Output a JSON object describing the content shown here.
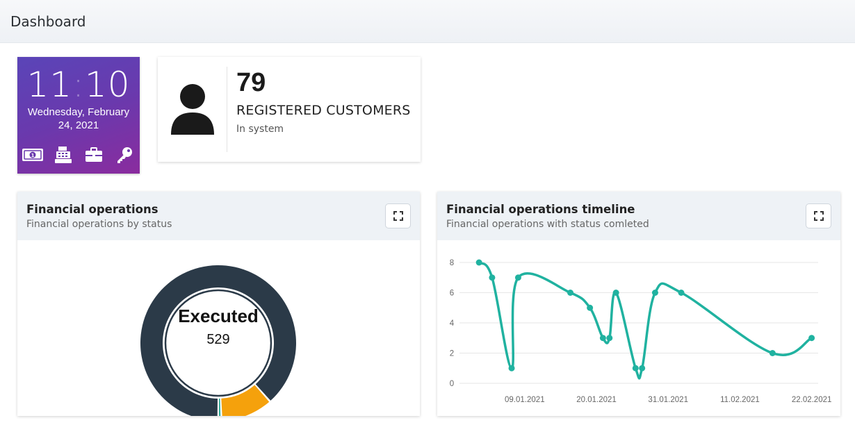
{
  "header": {
    "title": "Dashboard"
  },
  "clock": {
    "hours": "11",
    "minutes": "10",
    "date_line1": "Wednesday, February",
    "date_line2": "24, 2021",
    "icons": [
      "money-icon",
      "cash-register-icon",
      "briefcase-icon",
      "key-icon"
    ]
  },
  "customers": {
    "count": "79",
    "label": "REGISTERED CUSTOMERS",
    "sub": "In system"
  },
  "financial_ops": {
    "title": "Financial operations",
    "subtitle": "Financial operations by status",
    "center_label": "Executed",
    "center_value": "529"
  },
  "timeline": {
    "title": "Financial operations timeline",
    "subtitle": "Financial operations with status comleted"
  },
  "colors": {
    "donut_dark": "#2b3a48",
    "donut_orange": "#f5a10c",
    "donut_teal": "#13a08a",
    "line": "#20b2a0"
  },
  "chart_data": [
    {
      "type": "pie",
      "title": "Financial operations",
      "subtitle": "Financial operations by status",
      "categories": [
        "Executed",
        "",
        ""
      ],
      "values": [
        529,
        65,
        4
      ],
      "colors": [
        "#2b3a48",
        "#f5a10c",
        "#13a08a"
      ]
    },
    {
      "type": "line",
      "title": "Financial operations timeline",
      "subtitle": "Financial operations with status comleted",
      "x": [
        "2021-01-02",
        "2021-01-04",
        "2021-01-07",
        "2021-01-08",
        "2021-01-16",
        "2021-01-19",
        "2021-01-21",
        "2021-01-22",
        "2021-01-23",
        "2021-01-26",
        "2021-01-27",
        "2021-01-29",
        "2021-02-02",
        "2021-02-16",
        "2021-02-22"
      ],
      "series": [
        {
          "values": [
            8,
            7,
            1,
            7,
            6,
            5,
            3,
            3,
            6,
            1,
            1,
            6,
            6,
            2,
            3
          ]
        }
      ],
      "xticks": [
        "09.01.2021",
        "20.01.2021",
        "31.01.2021",
        "11.02.2021",
        "22.02.2021"
      ],
      "yticks": [
        "0",
        "2",
        "4",
        "6",
        "8"
      ],
      "ylim": [
        0,
        8
      ],
      "grid": true
    }
  ]
}
